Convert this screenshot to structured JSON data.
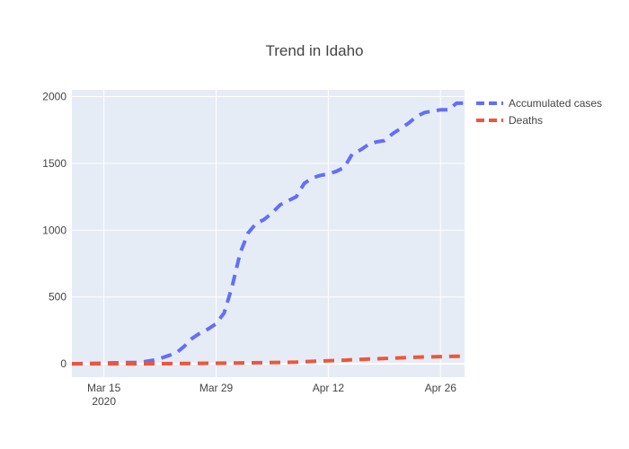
{
  "chart_data": {
    "type": "line",
    "title": "Trend in Idaho",
    "xlabel": "",
    "ylabel": "",
    "x_type": "date",
    "xlim": [
      "2020-03-11",
      "2020-04-29"
    ],
    "ylim": [
      -100,
      2050
    ],
    "x_ticks": [
      {
        "value": "2020-03-15",
        "label": "Mar 15",
        "sublabel": "2020"
      },
      {
        "value": "2020-03-29",
        "label": "Mar 29",
        "sublabel": ""
      },
      {
        "value": "2020-04-12",
        "label": "Apr 12",
        "sublabel": ""
      },
      {
        "value": "2020-04-26",
        "label": "Apr 26",
        "sublabel": ""
      }
    ],
    "y_ticks": [
      0,
      500,
      1000,
      1500,
      2000
    ],
    "grid": true,
    "legend_position": "top-right outside plot",
    "background_color": "#e5ecf6",
    "series": [
      {
        "name": "Accumulated cases",
        "color": "#636efa",
        "dash": "dash",
        "x": [
          "2020-03-11",
          "2020-03-13",
          "2020-03-15",
          "2020-03-17",
          "2020-03-19",
          "2020-03-20",
          "2020-03-21",
          "2020-03-22",
          "2020-03-23",
          "2020-03-24",
          "2020-03-25",
          "2020-03-26",
          "2020-03-27",
          "2020-03-28",
          "2020-03-29",
          "2020-03-30",
          "2020-03-31",
          "2020-04-01",
          "2020-04-02",
          "2020-04-03",
          "2020-04-04",
          "2020-04-05",
          "2020-04-06",
          "2020-04-07",
          "2020-04-08",
          "2020-04-09",
          "2020-04-10",
          "2020-04-11",
          "2020-04-12",
          "2020-04-13",
          "2020-04-14",
          "2020-04-15",
          "2020-04-16",
          "2020-04-17",
          "2020-04-18",
          "2020-04-19",
          "2020-04-20",
          "2020-04-21",
          "2020-04-22",
          "2020-04-23",
          "2020-04-24",
          "2020-04-25",
          "2020-04-26",
          "2020-04-27",
          "2020-04-28",
          "2020-04-29"
        ],
        "y": [
          0,
          2,
          5,
          8,
          10,
          15,
          25,
          40,
          60,
          80,
          130,
          190,
          230,
          260,
          300,
          380,
          580,
          830,
          980,
          1050,
          1080,
          1130,
          1190,
          1220,
          1250,
          1350,
          1390,
          1410,
          1420,
          1440,
          1470,
          1570,
          1600,
          1640,
          1660,
          1670,
          1720,
          1760,
          1800,
          1850,
          1880,
          1890,
          1900,
          1900,
          1950,
          1950
        ]
      },
      {
        "name": "Deaths",
        "color": "#ef553b",
        "dash": "dash",
        "x": [
          "2020-03-11",
          "2020-03-15",
          "2020-03-20",
          "2020-03-25",
          "2020-03-30",
          "2020-04-04",
          "2020-04-08",
          "2020-04-10",
          "2020-04-12",
          "2020-04-14",
          "2020-04-16",
          "2020-04-18",
          "2020-04-20",
          "2020-04-22",
          "2020-04-24",
          "2020-04-26",
          "2020-04-29"
        ],
        "y": [
          0,
          0,
          0,
          2,
          5,
          8,
          12,
          18,
          22,
          27,
          33,
          38,
          42,
          47,
          51,
          54,
          57
        ]
      }
    ]
  }
}
